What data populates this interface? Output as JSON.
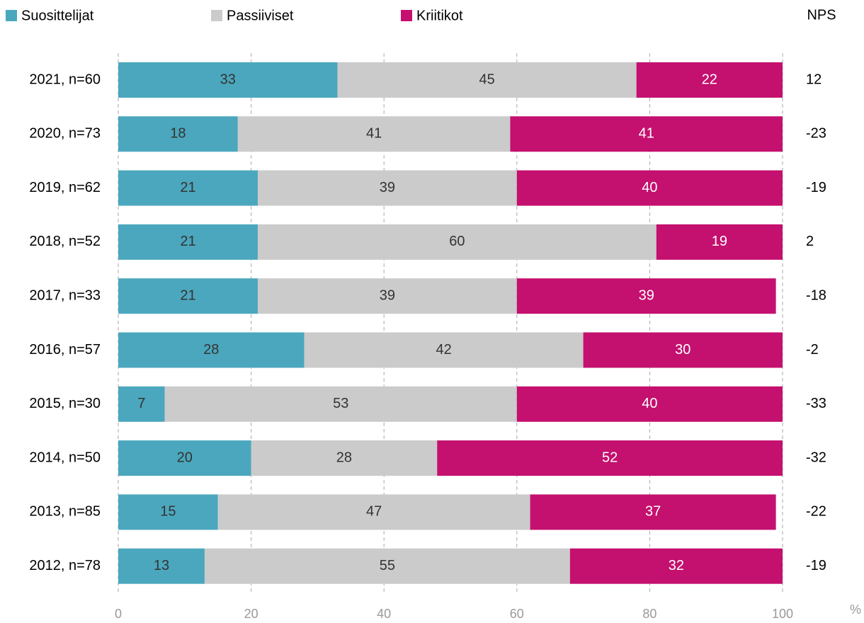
{
  "chart_data": {
    "type": "stacked_barh",
    "categories": [
      "2021, n=60",
      "2020, n=73",
      "2019, n=62",
      "2018, n=52",
      "2017, n=33",
      "2016, n=57",
      "2015, n=30",
      "2014, n=50",
      "2013, n=85",
      "2012, n=78"
    ],
    "series": [
      {
        "name": "Suosittelijat",
        "color": "#4ba7bd",
        "values": [
          33,
          18,
          21,
          21,
          21,
          28,
          7,
          20,
          15,
          13
        ]
      },
      {
        "name": "Passiiviset",
        "color": "#cbcbcb",
        "values": [
          45,
          41,
          39,
          60,
          39,
          42,
          53,
          28,
          47,
          55
        ]
      },
      {
        "name": "Kriitikot",
        "color": "#c4106e",
        "values": [
          22,
          41,
          40,
          19,
          39,
          30,
          40,
          52,
          37,
          32
        ]
      }
    ],
    "nps": {
      "label": "NPS",
      "values": [
        12,
        -23,
        -19,
        2,
        -18,
        -2,
        -33,
        -32,
        -22,
        -19
      ]
    },
    "xlabel": "%",
    "xlim": [
      0,
      100
    ],
    "xticks": [
      0,
      20,
      40,
      60,
      80,
      100
    ],
    "grid": true
  }
}
